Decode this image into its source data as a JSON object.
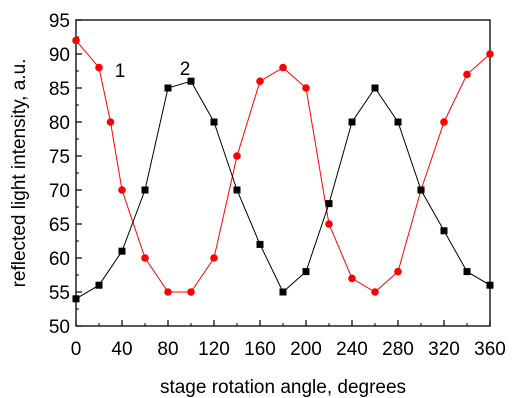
{
  "chart_data": {
    "type": "line",
    "xlabel": "stage rotation angle, degrees",
    "ylabel": "reflected light intensity, a.u.",
    "xlim": [
      0,
      360
    ],
    "ylim": [
      50,
      95
    ],
    "xticks": [
      0,
      40,
      80,
      120,
      160,
      200,
      240,
      280,
      320,
      360
    ],
    "yticks": [
      50,
      55,
      60,
      65,
      70,
      75,
      80,
      85,
      90,
      95
    ],
    "grid": false,
    "series": [
      {
        "name": "1",
        "color": "#ff0000",
        "marker": "circle",
        "x": [
          0,
          20,
          30,
          40,
          60,
          80,
          100,
          120,
          140,
          160,
          180,
          200,
          220,
          240,
          260,
          280,
          300,
          320,
          340,
          360
        ],
        "y": [
          92,
          88,
          80,
          70,
          60,
          55,
          55,
          60,
          75,
          86,
          88,
          85,
          65,
          57,
          55,
          58,
          70,
          80,
          87,
          90
        ]
      },
      {
        "name": "2",
        "color": "#000000",
        "marker": "square",
        "x": [
          0,
          20,
          40,
          60,
          80,
          100,
          120,
          140,
          160,
          180,
          200,
          220,
          240,
          260,
          280,
          300,
          320,
          340,
          360
        ],
        "y": [
          54,
          56,
          61,
          70,
          85,
          86,
          80,
          70,
          62,
          55,
          58,
          68,
          80,
          85,
          80,
          70,
          64,
          58,
          56
        ]
      }
    ]
  }
}
